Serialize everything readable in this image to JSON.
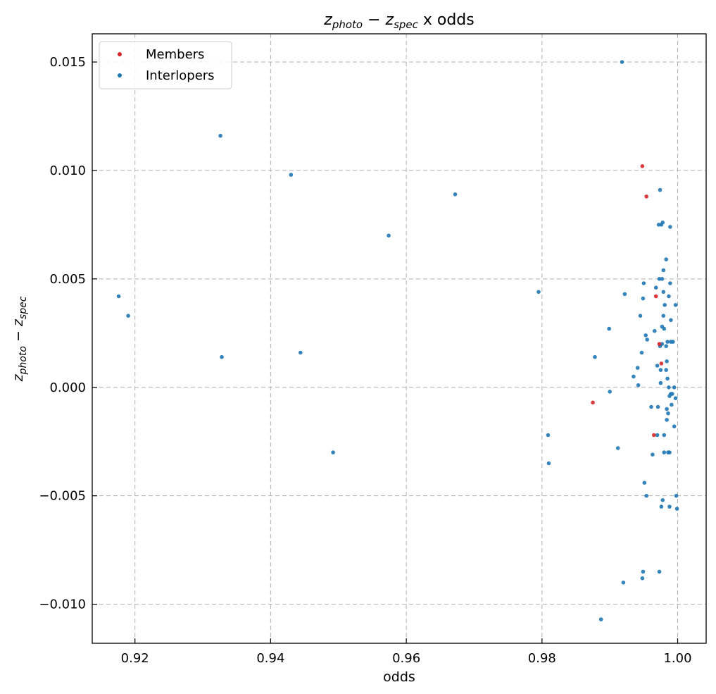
{
  "chart_data": {
    "type": "scatter",
    "title": "z_photo − z_spec x odds",
    "title_parts": {
      "z": "z",
      "photo": "photo",
      "minus": " − ",
      "spec": "spec",
      "rest": " x odds"
    },
    "xlabel": "odds",
    "ylabel": "z_photo − z_spec",
    "xlim": [
      0.9137,
      1.0042
    ],
    "ylim": [
      -0.0118,
      0.0163
    ],
    "xticks": [
      0.92,
      0.94,
      0.96,
      0.98,
      1.0
    ],
    "xtick_labels": [
      "0.92",
      "0.94",
      "0.96",
      "0.98",
      "1.00"
    ],
    "yticks": [
      -0.01,
      -0.005,
      0.0,
      0.005,
      0.01,
      0.015
    ],
    "ytick_labels": [
      "−0.010",
      "−0.005",
      "0.000",
      "0.005",
      "0.010",
      "0.015"
    ],
    "grid": true,
    "legend_position": "top-left",
    "series": [
      {
        "name": "Members",
        "color": "#d62728",
        "points": [
          [
            0.9948,
            0.0102
          ],
          [
            0.9954,
            0.0088
          ],
          [
            0.9968,
            0.0042
          ],
          [
            0.9973,
            0.002
          ],
          [
            0.9976,
            0.0011
          ],
          [
            0.9875,
            -0.0007
          ],
          [
            0.9965,
            -0.0022
          ]
        ]
      },
      {
        "name": "Interlopers",
        "color": "#1f77b4",
        "points": [
          [
            0.9918,
            0.015
          ],
          [
            0.9326,
            0.0116
          ],
          [
            0.943,
            0.0098
          ],
          [
            0.9672,
            0.0089
          ],
          [
            0.9574,
            0.007
          ],
          [
            0.9176,
            0.0042
          ],
          [
            0.919,
            0.0033
          ],
          [
            0.9328,
            0.0014
          ],
          [
            0.9444,
            0.0016
          ],
          [
            0.9492,
            -0.003
          ],
          [
            0.9795,
            0.0044
          ],
          [
            0.9878,
            0.0014
          ],
          [
            0.9899,
            0.0027
          ],
          [
            0.99,
            -0.0002
          ],
          [
            0.9809,
            -0.0022
          ],
          [
            0.981,
            -0.0035
          ],
          [
            0.9912,
            -0.0028
          ],
          [
            0.9887,
            -0.0107
          ],
          [
            0.992,
            -0.009
          ],
          [
            0.9922,
            0.0043
          ],
          [
            0.9935,
            0.0005
          ],
          [
            0.9941,
            0.0009
          ],
          [
            0.9942,
            0.0001
          ],
          [
            0.9945,
            0.0033
          ],
          [
            0.9947,
            0.0016
          ],
          [
            0.9949,
            0.0041
          ],
          [
            0.995,
            0.0048
          ],
          [
            0.9953,
            0.0024
          ],
          [
            0.9955,
            0.0022
          ],
          [
            0.9951,
            -0.0044
          ],
          [
            0.9954,
            -0.005
          ],
          [
            0.9949,
            -0.0085
          ],
          [
            0.9948,
            -0.0088
          ],
          [
            0.9961,
            -0.0009
          ],
          [
            0.9963,
            -0.0031
          ],
          [
            0.9966,
            0.0026
          ],
          [
            0.9968,
            0.0046
          ],
          [
            0.997,
            0.001
          ],
          [
            0.997,
            -0.0022
          ],
          [
            0.9971,
            -0.0009
          ],
          [
            0.9972,
            0.0075
          ],
          [
            0.9973,
            0.005
          ],
          [
            0.9974,
            0.0019
          ],
          [
            0.9975,
            0.0008
          ],
          [
            0.9975,
            0.0002
          ],
          [
            0.9974,
            0.0091
          ],
          [
            0.9973,
            -0.0085
          ],
          [
            0.9976,
            0.0075
          ],
          [
            0.9977,
            0.005
          ],
          [
            0.9978,
            0.0076
          ],
          [
            0.9977,
            0.0028
          ],
          [
            0.9977,
            0.002
          ],
          [
            0.9976,
            -0.0055
          ],
          [
            0.9978,
            -0.0052
          ],
          [
            0.9979,
            0.0054
          ],
          [
            0.9979,
            0.0044
          ],
          [
            0.9979,
            0.0033
          ],
          [
            0.998,
            0.0027
          ],
          [
            0.998,
            -0.003
          ],
          [
            0.998,
            -0.0022
          ],
          [
            0.9981,
            0.0038
          ],
          [
            0.9983,
            0.0059
          ],
          [
            0.9983,
            0.0019
          ],
          [
            0.9984,
            0.0012
          ],
          [
            0.9983,
            0.0008
          ],
          [
            0.9984,
            -0.001
          ],
          [
            0.9984,
            -0.0015
          ],
          [
            0.9985,
            0.0021
          ],
          [
            0.9985,
            0.0004
          ],
          [
            0.9986,
            -0.003
          ],
          [
            0.9986,
            -0.0012
          ],
          [
            0.9987,
            0.0042
          ],
          [
            0.9987,
            0.0
          ],
          [
            0.9988,
            -0.0004
          ],
          [
            0.9988,
            -0.003
          ],
          [
            0.9988,
            -0.0055
          ],
          [
            0.9989,
            0.0074
          ],
          [
            0.9989,
            0.0048
          ],
          [
            0.999,
            0.0031
          ],
          [
            0.999,
            0.0021
          ],
          [
            0.999,
            -0.0003
          ],
          [
            0.9991,
            -0.0008
          ],
          [
            0.9992,
            -0.0003
          ],
          [
            0.9993,
            0.0021
          ],
          [
            0.9995,
            0.0
          ],
          [
            0.9995,
            -0.0018
          ],
          [
            0.9997,
            0.0038
          ],
          [
            0.9997,
            -0.0005
          ],
          [
            0.9998,
            -0.005
          ],
          [
            0.9999,
            -0.0056
          ]
        ]
      }
    ]
  }
}
